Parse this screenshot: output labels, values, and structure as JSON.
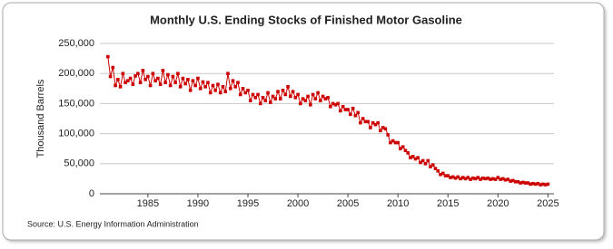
{
  "chart_data": {
    "type": "line",
    "title": "Monthly U.S. Ending Stocks of Finished Motor Gasoline",
    "y_label": "Thousand Barrels",
    "source": "Source: U.S. Energy Information Administration",
    "color": "#cc0000",
    "grid": true,
    "xlim": [
      1980.2,
      2025.6
    ],
    "xticks": [
      1985,
      1990,
      1995,
      2000,
      2005,
      2010,
      2015,
      2020,
      2025
    ],
    "ylim": [
      0,
      250000
    ],
    "yticks": [
      0,
      {
        "value": 50000,
        "label": "50,000"
      },
      {
        "value": 100000,
        "label": "100,000"
      },
      {
        "value": 150000,
        "label": "150,000"
      },
      {
        "value": 200000,
        "label": "200,000"
      },
      {
        "value": 250000,
        "label": "250,000"
      }
    ],
    "x": [
      1981,
      1981.25,
      1981.5,
      1981.75,
      1982,
      1982.25,
      1982.5,
      1982.75,
      1983,
      1983.25,
      1983.5,
      1983.75,
      1984,
      1984.25,
      1984.5,
      1984.75,
      1985,
      1985.25,
      1985.5,
      1985.75,
      1986,
      1986.25,
      1986.5,
      1986.75,
      1987,
      1987.25,
      1987.5,
      1987.75,
      1988,
      1988.25,
      1988.5,
      1988.75,
      1989,
      1989.25,
      1989.5,
      1989.75,
      1990,
      1990.25,
      1990.5,
      1990.75,
      1991,
      1991.25,
      1991.5,
      1991.75,
      1992,
      1992.25,
      1992.5,
      1992.75,
      1993,
      1993.25,
      1993.5,
      1993.75,
      1994,
      1994.25,
      1994.5,
      1994.75,
      1995,
      1995.25,
      1995.5,
      1995.75,
      1996,
      1996.25,
      1996.5,
      1996.75,
      1997,
      1997.25,
      1997.5,
      1997.75,
      1998,
      1998.25,
      1998.5,
      1998.75,
      1999,
      1999.25,
      1999.5,
      1999.75,
      2000,
      2000.25,
      2000.5,
      2000.75,
      2001,
      2001.25,
      2001.5,
      2001.75,
      2002,
      2002.25,
      2002.5,
      2002.75,
      2003,
      2003.25,
      2003.5,
      2003.75,
      2004,
      2004.25,
      2004.5,
      2004.75,
      2005,
      2005.25,
      2005.5,
      2005.75,
      2006,
      2006.25,
      2006.5,
      2006.75,
      2007,
      2007.25,
      2007.5,
      2007.75,
      2008,
      2008.25,
      2008.5,
      2008.75,
      2009,
      2009.25,
      2009.5,
      2009.75,
      2010,
      2010.25,
      2010.5,
      2010.75,
      2011,
      2011.25,
      2011.5,
      2011.75,
      2012,
      2012.25,
      2012.5,
      2012.75,
      2013,
      2013.25,
      2013.5,
      2013.75,
      2014,
      2014.25,
      2014.5,
      2014.75,
      2015,
      2015.25,
      2015.5,
      2015.75,
      2016,
      2016.25,
      2016.5,
      2016.75,
      2017,
      2017.25,
      2017.5,
      2017.75,
      2018,
      2018.25,
      2018.5,
      2018.75,
      2019,
      2019.25,
      2019.5,
      2019.75,
      2020,
      2020.25,
      2020.5,
      2020.75,
      2021,
      2021.25,
      2021.5,
      2021.75,
      2022,
      2022.25,
      2022.5,
      2022.75,
      2023,
      2023.25,
      2023.5,
      2023.75,
      2024,
      2024.25,
      2024.5,
      2024.75,
      2025
    ],
    "values": [
      228000,
      195000,
      210000,
      180000,
      190000,
      178000,
      200000,
      185000,
      188000,
      192000,
      182000,
      196000,
      200000,
      185000,
      205000,
      190000,
      195000,
      180000,
      200000,
      188000,
      192000,
      182000,
      205000,
      185000,
      198000,
      180000,
      195000,
      185000,
      200000,
      178000,
      192000,
      183000,
      190000,
      172000,
      188000,
      180000,
      192000,
      175000,
      186000,
      178000,
      185000,
      168000,
      180000,
      172000,
      182000,
      168000,
      178000,
      170000,
      200000,
      175000,
      188000,
      178000,
      185000,
      165000,
      175000,
      168000,
      172000,
      155000,
      165000,
      160000,
      165000,
      150000,
      160000,
      155000,
      168000,
      152000,
      162000,
      158000,
      170000,
      158000,
      172000,
      165000,
      178000,
      162000,
      170000,
      160000,
      165000,
      150000,
      158000,
      155000,
      162000,
      148000,
      165000,
      158000,
      168000,
      155000,
      162000,
      158000,
      160000,
      145000,
      150000,
      148000,
      150000,
      138000,
      145000,
      140000,
      140000,
      132000,
      142000,
      130000,
      135000,
      118000,
      125000,
      120000,
      120000,
      110000,
      118000,
      115000,
      118000,
      105000,
      110000,
      108000,
      98000,
      85000,
      88000,
      85000,
      85000,
      75000,
      78000,
      72000,
      68000,
      60000,
      62000,
      58000,
      60000,
      52000,
      55000,
      50000,
      55000,
      45000,
      48000,
      42000,
      38000,
      32000,
      34000,
      30000,
      30000,
      27000,
      28000,
      26000,
      28000,
      25000,
      27000,
      25000,
      27000,
      24000,
      26000,
      25000,
      27000,
      24000,
      26000,
      25000,
      26000,
      24000,
      25000,
      24000,
      27000,
      24000,
      25000,
      23000,
      24000,
      21000,
      22000,
      20000,
      20000,
      18000,
      19000,
      18000,
      18000,
      16000,
      17000,
      16000,
      17000,
      15000,
      16000,
      15000,
      16000
    ]
  }
}
